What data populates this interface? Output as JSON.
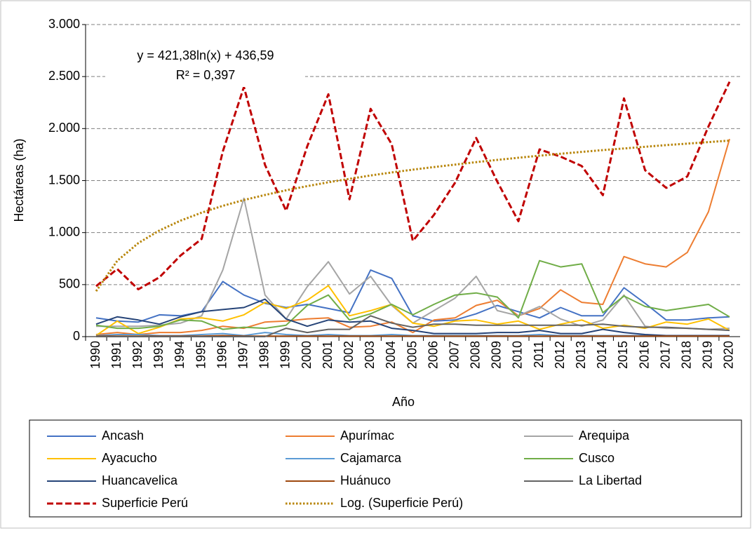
{
  "chart_data": {
    "type": "line",
    "y_label": "Hectáreas (ha)",
    "x_label": "Año",
    "annotations": [
      "y = 421,38ln(x) + 436,59",
      "R² = 0,397"
    ],
    "categories": [
      "1990",
      "1991",
      "1992",
      "1993",
      "1994",
      "1995",
      "1996",
      "1997",
      "1998",
      "1999",
      "2000",
      "2001",
      "2002",
      "2003",
      "2004",
      "2005",
      "2006",
      "2007",
      "2008",
      "2009",
      "2010",
      "2011",
      "2012",
      "2013",
      "2014",
      "2015",
      "2016",
      "2017",
      "2018",
      "2019",
      "2020"
    ],
    "ylim": [
      0,
      3000
    ],
    "yticks": [
      0,
      500,
      {
        "value": 1000,
        "label": "1.000"
      },
      {
        "value": 1500,
        "label": "1.500"
      },
      {
        "value": 2000,
        "label": "2.000"
      },
      {
        "value": 2500,
        "label": "2.500"
      },
      {
        "value": 3000,
        "label": "3.000"
      }
    ],
    "grid": true,
    "legend": "bottom",
    "series": [
      {
        "name": "Ancash",
        "color": "#4472c4",
        "values": [
          180,
          150,
          140,
          210,
          200,
          240,
          530,
          400,
          320,
          280,
          310,
          270,
          230,
          640,
          560,
          200,
          150,
          160,
          220,
          300,
          240,
          180,
          280,
          200,
          200,
          470,
          320,
          160,
          160,
          180,
          190
        ]
      },
      {
        "name": "Apurímac",
        "color": "#ed7d31",
        "values": [
          20,
          40,
          20,
          40,
          40,
          60,
          100,
          80,
          140,
          150,
          170,
          180,
          90,
          100,
          140,
          40,
          160,
          180,
          300,
          350,
          200,
          270,
          450,
          330,
          310,
          770,
          700,
          670,
          810,
          1200,
          1900
        ]
      },
      {
        "name": "Arequipa",
        "color": "#a5a5a5",
        "values": [
          100,
          100,
          100,
          110,
          130,
          200,
          640,
          1330,
          400,
          170,
          480,
          720,
          410,
          580,
          300,
          130,
          250,
          370,
          580,
          250,
          200,
          290,
          170,
          100,
          160,
          400,
          100,
          80,
          80,
          70,
          80
        ]
      },
      {
        "name": "Ayacucho",
        "color": "#ffc000",
        "values": [
          10,
          150,
          30,
          90,
          170,
          180,
          150,
          210,
          330,
          270,
          350,
          490,
          200,
          250,
          310,
          130,
          100,
          150,
          160,
          120,
          150,
          70,
          120,
          160,
          80,
          110,
          80,
          140,
          120,
          170,
          60
        ]
      },
      {
        "name": "Cajamarca",
        "color": "#5b9bd5",
        "values": [
          10,
          20,
          20,
          10,
          10,
          20,
          30,
          10,
          40,
          20,
          10,
          20,
          10,
          10,
          20,
          10,
          10,
          10,
          10,
          10,
          10,
          20,
          10,
          10,
          10,
          10,
          10,
          10,
          10,
          10,
          10
        ]
      },
      {
        "name": "Cusco",
        "color": "#70ad47",
        "values": [
          110,
          80,
          80,
          100,
          160,
          150,
          70,
          90,
          80,
          110,
          300,
          400,
          160,
          220,
          310,
          210,
          310,
          400,
          420,
          380,
          180,
          730,
          670,
          700,
          230,
          390,
          290,
          250,
          280,
          310,
          190
        ]
      },
      {
        "name": "Huancavelica",
        "color": "#264478",
        "values": [
          120,
          190,
          160,
          120,
          190,
          240,
          260,
          280,
          360,
          170,
          100,
          160,
          140,
          150,
          80,
          60,
          30,
          30,
          30,
          40,
          40,
          60,
          30,
          30,
          70,
          40,
          20,
          10,
          10,
          10,
          10
        ]
      },
      {
        "name": "Huánuco",
        "color": "#9e480e",
        "values": [
          5,
          5,
          5,
          5,
          5,
          5,
          10,
          5,
          5,
          5,
          5,
          5,
          5,
          5,
          5,
          5,
          5,
          5,
          5,
          5,
          5,
          5,
          5,
          5,
          5,
          5,
          5,
          5,
          5,
          5,
          5
        ]
      },
      {
        "name": "La Libertad",
        "color": "#636363",
        "values": [
          0,
          0,
          0,
          0,
          0,
          0,
          0,
          0,
          0,
          80,
          40,
          70,
          70,
          200,
          130,
          90,
          120,
          120,
          110,
          110,
          110,
          110,
          110,
          110,
          120,
          100,
          90,
          90,
          80,
          70,
          60
        ]
      },
      {
        "name": "Superficie Perú",
        "color": "#c00000",
        "line_style": "dashed",
        "values": [
          485,
          650,
          455,
          570,
          780,
          940,
          1780,
          2400,
          1650,
          1210,
          1830,
          2330,
          1320,
          2190,
          1850,
          920,
          1170,
          1480,
          1910,
          1490,
          1110,
          1800,
          1730,
          1640,
          1360,
          2290,
          1600,
          1430,
          1540,
          2020,
          2450
        ]
      },
      {
        "name": "Log. (Superficie Perú)",
        "color": "#b8860b",
        "line_style": "dotted",
        "values": [
          437,
          729,
          899,
          1021,
          1115,
          1192,
          1257,
          1313,
          1362,
          1407,
          1447,
          1484,
          1517,
          1549,
          1578,
          1605,
          1630,
          1654,
          1677,
          1699,
          1720,
          1739,
          1758,
          1776,
          1793,
          1809,
          1825,
          1841,
          1855,
          1870,
          1884
        ]
      }
    ]
  }
}
